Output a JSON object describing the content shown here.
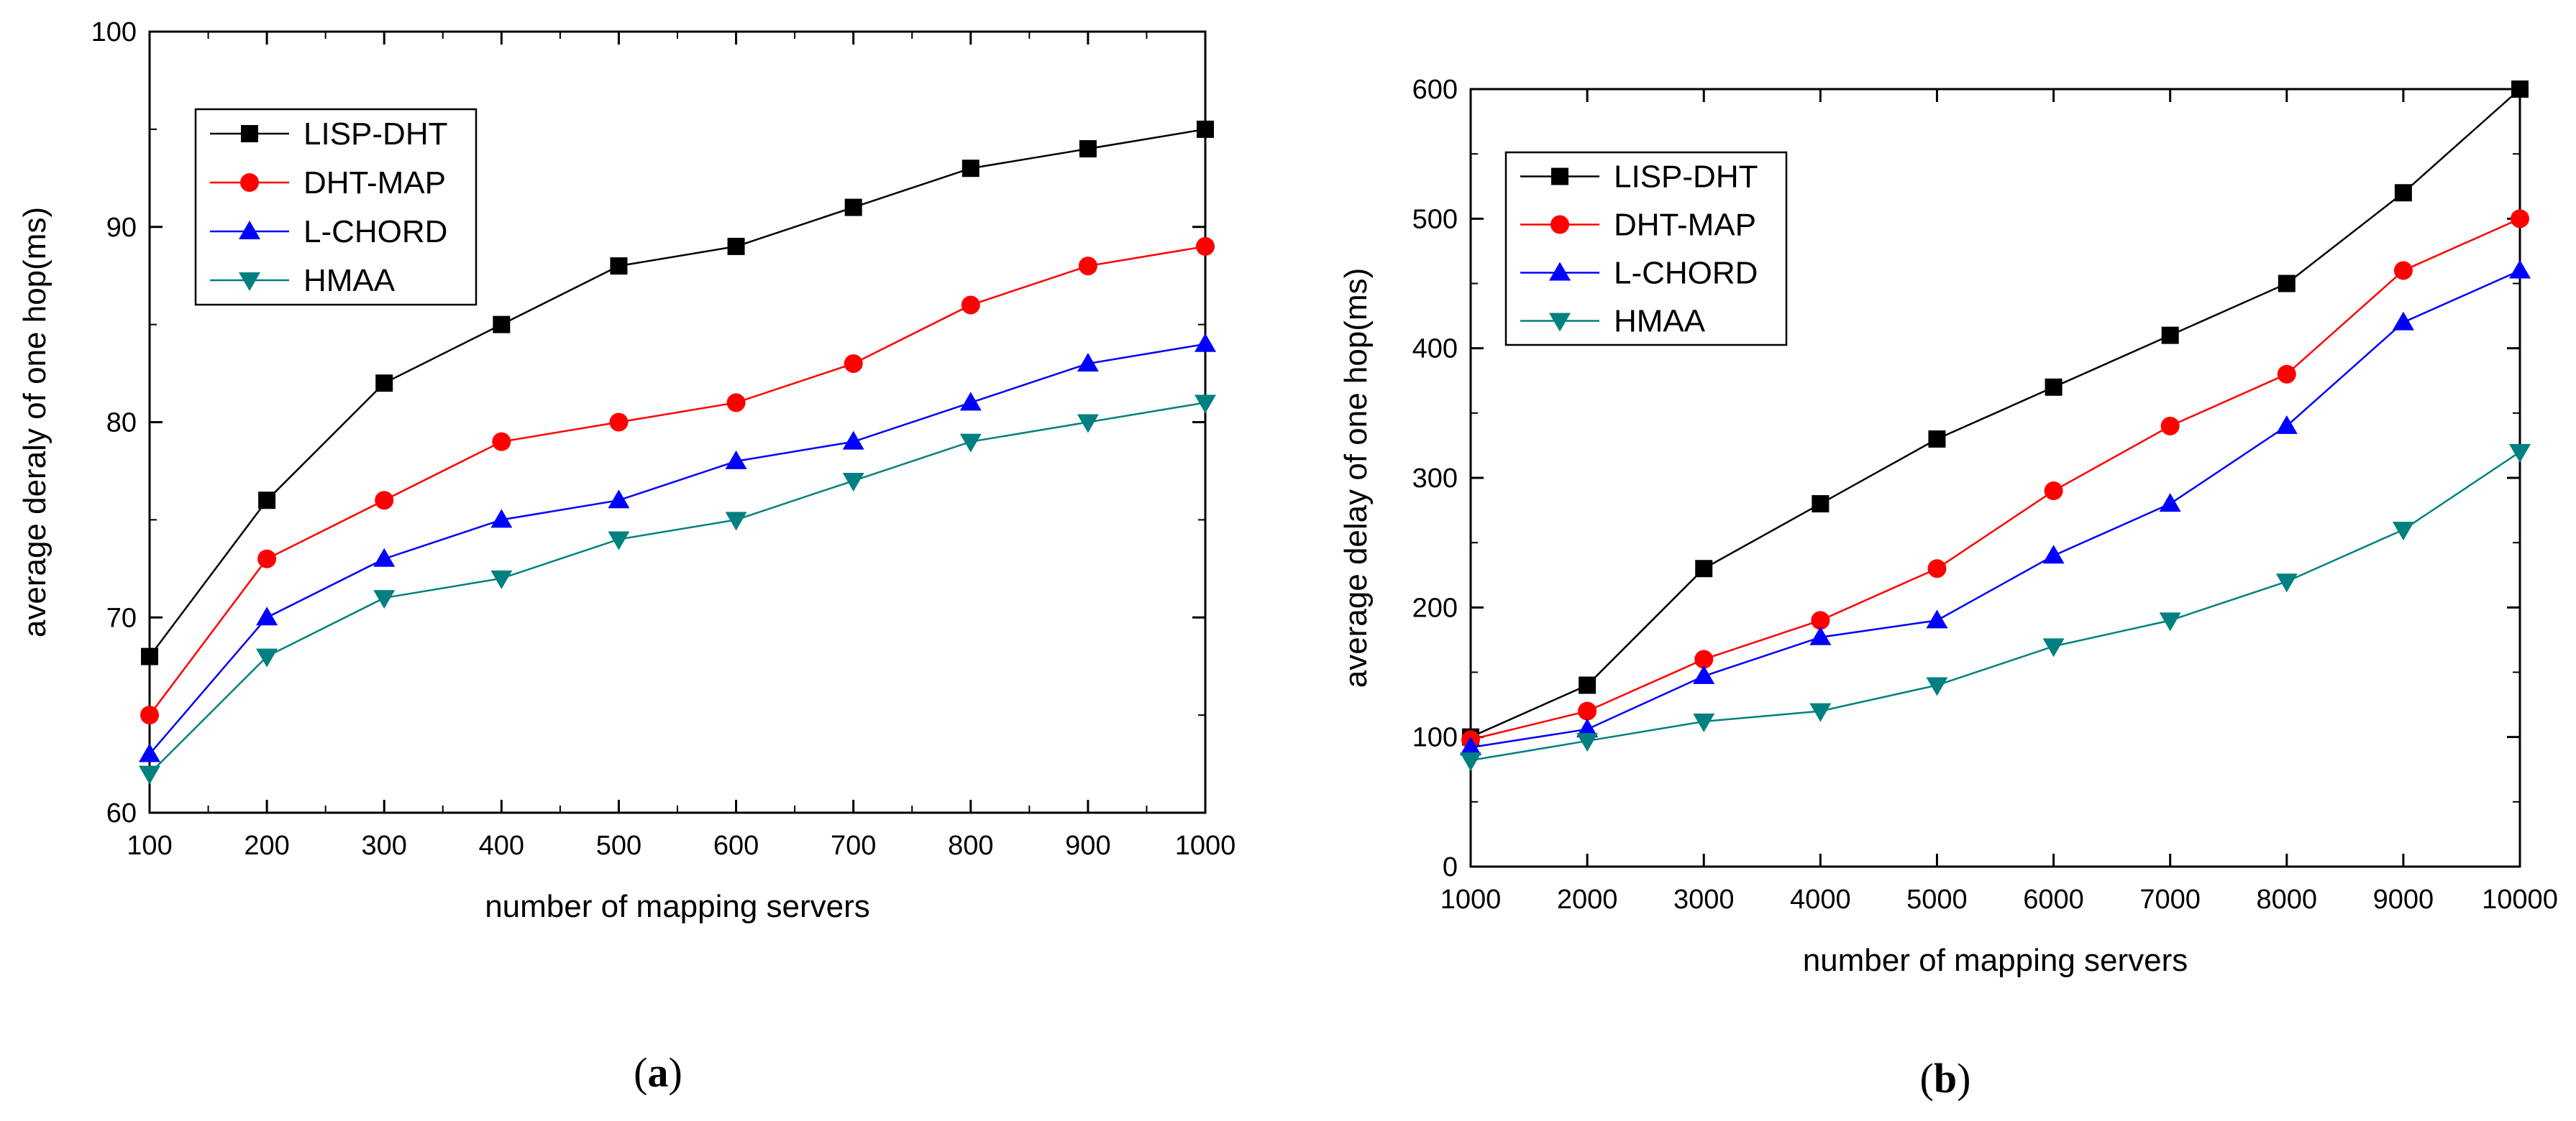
{
  "chart_data": [
    {
      "type": "line",
      "panel": "(a)",
      "panel_letter": "a",
      "xlabel": "number of mapping servers",
      "ylabel": "average deraly of one hop(ms)",
      "x": [
        100,
        200,
        300,
        400,
        500,
        600,
        700,
        800,
        900,
        1000
      ],
      "x_tick_labels": [
        "100",
        "200",
        "300",
        "400",
        "500",
        "600",
        "700",
        "800",
        "900",
        "1000"
      ],
      "xlim": [
        100,
        1000
      ],
      "ylim": [
        60,
        100
      ],
      "y_ticks": [
        60,
        70,
        80,
        90,
        100
      ],
      "y_tick_labels": [
        "60",
        "70",
        "80",
        "90",
        "100"
      ],
      "legend_position": "top-left",
      "series": [
        {
          "name": "LISP-DHT",
          "color": "#000000",
          "marker": "square",
          "values": [
            68,
            76,
            82,
            85,
            88,
            89,
            91,
            93,
            94,
            95
          ]
        },
        {
          "name": "DHT-MAP",
          "color": "#ff0000",
          "marker": "circle",
          "values": [
            65,
            73,
            76,
            79,
            80,
            81,
            83,
            86,
            88,
            89
          ]
        },
        {
          "name": "L-CHORD",
          "color": "#0000ff",
          "marker": "triangle-up",
          "values": [
            63,
            70,
            73,
            75,
            76,
            78,
            79,
            81,
            83,
            84
          ]
        },
        {
          "name": "HMAA",
          "color": "#008080",
          "marker": "triangle-down",
          "values": [
            62,
            68,
            71,
            72,
            74,
            75,
            77,
            79,
            80,
            81
          ]
        }
      ]
    },
    {
      "type": "line",
      "panel": "(b)",
      "panel_letter": "b",
      "xlabel": "number of mapping servers",
      "ylabel": "average delay of one hop(ms)",
      "x": [
        1000,
        2000,
        3000,
        4000,
        5000,
        6000,
        7000,
        8000,
        9000,
        10000
      ],
      "x_tick_labels": [
        "1000",
        "2000",
        "3000",
        "4000",
        "5000",
        "6000",
        "7000",
        "8000",
        "9000",
        "10000"
      ],
      "xlim": [
        1000,
        10000
      ],
      "ylim": [
        0,
        600
      ],
      "y_ticks": [
        0,
        100,
        200,
        300,
        400,
        500,
        600
      ],
      "y_tick_labels": [
        "0",
        "100",
        "200",
        "300",
        "400",
        "500",
        "600"
      ],
      "legend_position": "top-left",
      "series": [
        {
          "name": "LISP-DHT",
          "color": "#000000",
          "marker": "square",
          "values": [
            100,
            140,
            230,
            280,
            330,
            370,
            410,
            450,
            520,
            600
          ]
        },
        {
          "name": "DHT-MAP",
          "color": "#ff0000",
          "marker": "circle",
          "values": [
            98,
            120,
            160,
            190,
            230,
            290,
            340,
            380,
            460,
            500
          ]
        },
        {
          "name": "L-CHORD",
          "color": "#0000ff",
          "marker": "triangle-up",
          "values": [
            92,
            106,
            147,
            177,
            190,
            240,
            280,
            340,
            420,
            460
          ]
        },
        {
          "name": "HMAA",
          "color": "#008080",
          "marker": "triangle-down",
          "values": [
            82,
            97,
            112,
            120,
            140,
            170,
            190,
            220,
            260,
            320
          ]
        }
      ]
    }
  ]
}
